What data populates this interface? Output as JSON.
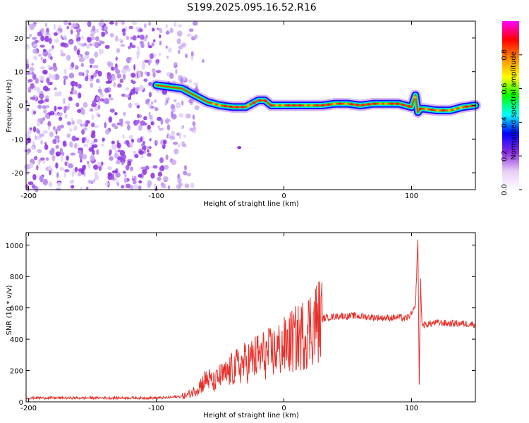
{
  "chart_data": [
    {
      "type": "heatmap",
      "title": "S199.2025.095.16.52.R16",
      "xlabel": "Height of straight line (km)",
      "ylabel": "Frequency (Hz)",
      "xlim": [
        -202,
        150
      ],
      "ylim": [
        -25,
        25
      ],
      "xticks": [
        -200,
        -100,
        0,
        100
      ],
      "yticks": [
        -20,
        -10,
        0,
        10,
        20
      ],
      "colorbar": {
        "label": "Normalized spectral amplitude",
        "range": [
          0,
          1
        ],
        "ticks": [
          "0.0",
          "0.2",
          "0.4",
          "0.6",
          "0.8"
        ],
        "colors": [
          "#ffffff",
          "#e6ccf5",
          "#8a2be2",
          "#0000ff",
          "#00ffff",
          "#00ff00",
          "#ffff00",
          "#ff8c00",
          "#ff0000",
          "#ff00ff"
        ]
      },
      "signal_trace": {
        "x": [
          -100,
          -90,
          -80,
          -70,
          -60,
          -50,
          -40,
          -30,
          -20,
          -15,
          -10,
          -5,
          0,
          10,
          20,
          30,
          40,
          50,
          60,
          70,
          80,
          90,
          100,
          103,
          105,
          107,
          110,
          120,
          130,
          140,
          150
        ],
        "y": [
          6,
          5.5,
          5,
          3,
          1,
          0,
          -0.5,
          -0.5,
          1.5,
          1.5,
          0,
          0,
          0,
          0,
          0,
          0,
          0.5,
          0.5,
          0,
          0.5,
          0.5,
          0.5,
          -0.5,
          3,
          -2,
          -1,
          -1,
          -1.5,
          -1.5,
          -0.5,
          0
        ]
      },
      "noise_region": {
        "x": [
          -202,
          -75
        ],
        "y": [
          -25,
          25
        ]
      }
    },
    {
      "type": "line",
      "title": "",
      "xlabel": "Height of straight line (km)",
      "ylabel": "SNR (10 * v/v)",
      "xlim": [
        -202,
        150
      ],
      "ylim": [
        0,
        1080
      ],
      "xticks": [
        -200,
        -100,
        0,
        100
      ],
      "yticks": [
        0,
        200,
        400,
        600,
        800,
        1000
      ],
      "color": "#e8302a",
      "series": [
        {
          "x": [
            -202,
            -180,
            -160,
            -140,
            -120,
            -100,
            -90,
            -80,
            -75,
            -70,
            -65,
            -60,
            -55,
            -50,
            -45,
            -40,
            -35,
            -30,
            -25,
            -20,
            -15,
            -10,
            -5,
            0,
            5,
            10,
            15,
            20,
            25,
            30,
            35,
            40,
            45,
            50,
            55,
            60,
            70,
            80,
            90,
            95,
            100,
            103,
            105,
            106,
            107,
            108,
            110,
            115,
            120,
            130,
            140,
            150
          ],
          "y": [
            25,
            25,
            25,
            25,
            25,
            25,
            28,
            35,
            45,
            70,
            110,
            150,
            120,
            160,
            175,
            210,
            230,
            250,
            270,
            290,
            300,
            310,
            330,
            350,
            380,
            400,
            430,
            470,
            510,
            530,
            540,
            545,
            550,
            545,
            550,
            545,
            540,
            535,
            540,
            530,
            560,
            600,
            1050,
            90,
            800,
            500,
            490,
            500,
            505,
            500,
            500,
            495
          ]
        }
      ]
    }
  ]
}
